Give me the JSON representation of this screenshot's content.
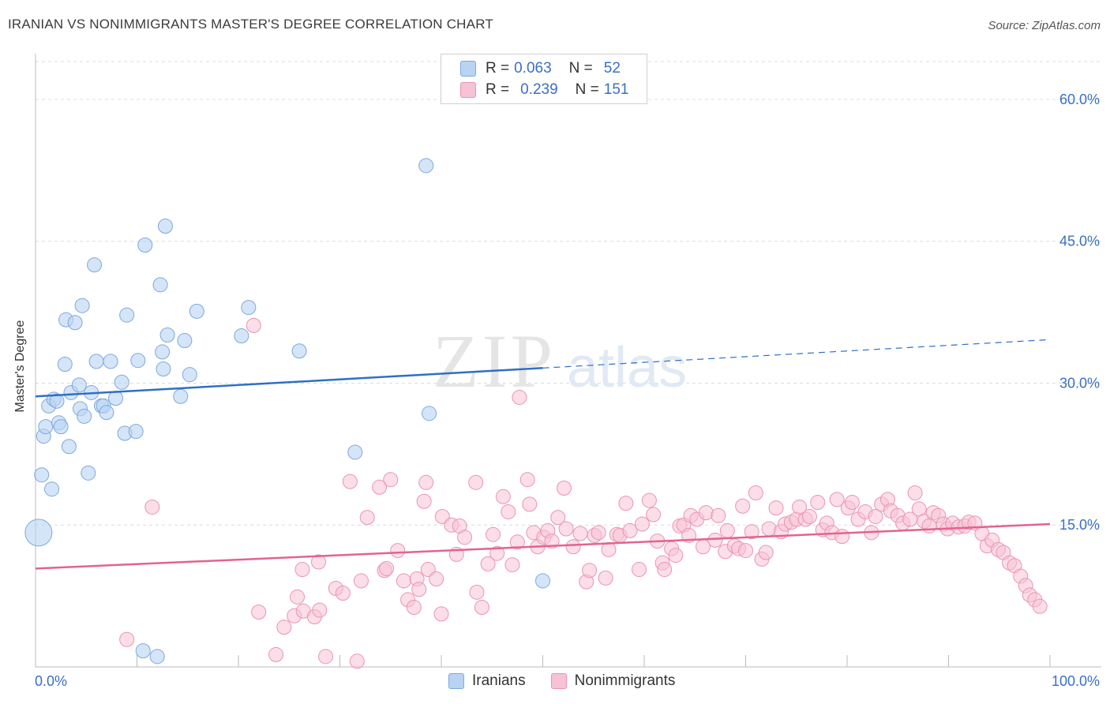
{
  "header": {
    "title": "IRANIAN VS NONIMMIGRANTS MASTER'S DEGREE CORRELATION CHART",
    "source": "Source: ZipAtlas.com"
  },
  "watermark": {
    "zip": "ZIP",
    "atlas": "atlas"
  },
  "legend": {
    "rows": [
      {
        "r_label": "R =",
        "r_value": "0.063",
        "n_label": "N =",
        "n_value": "52"
      },
      {
        "r_label": "R =",
        "r_value": "0.239",
        "n_label": "N =",
        "n_value": "151"
      }
    ],
    "bottom": [
      "Iranians",
      "Nonimmigrants"
    ]
  },
  "chart_data": {
    "type": "scatter",
    "title": "IRANIAN VS NONIMMIGRANTS MASTER'S DEGREE CORRELATION CHART",
    "ylabel": "Master's Degree",
    "xlim": [
      0,
      100
    ],
    "ylim": [
      0,
      64
    ],
    "x_tick_labels": [
      "0.0%",
      "100.0%"
    ],
    "y_ticks": [
      15,
      30,
      45,
      60
    ],
    "y_tick_labels": [
      "15.0%",
      "30.0%",
      "45.0%",
      "60.0%"
    ],
    "grid": true,
    "legend_position": "top-center",
    "colors": {
      "iranians_fill": "#b9d3f3",
      "iranians_stroke": "#7ea8dc",
      "iranians_line": "#2f6fc6",
      "nonimmigrants_fill": "#f7c2d3",
      "nonimmigrants_stroke": "#ea94b2",
      "nonimmigrants_line": "#e3638f",
      "axis_text": "#3a6fc4"
    },
    "series": [
      {
        "name": "Iranians",
        "R": 0.063,
        "N": 52,
        "trend": {
          "x0": 0,
          "y0": 28.6,
          "x1": 100,
          "y1": 34.6,
          "solid_until_x": 50
        },
        "points": [
          [
            0.3,
            14.2
          ],
          [
            0.6,
            20.3
          ],
          [
            0.8,
            24.4
          ],
          [
            1.0,
            25.4
          ],
          [
            1.3,
            27.6
          ],
          [
            1.6,
            18.8
          ],
          [
            1.8,
            28.3
          ],
          [
            2.1,
            28.1
          ],
          [
            2.3,
            25.8
          ],
          [
            2.5,
            25.4
          ],
          [
            2.9,
            32.0
          ],
          [
            3.0,
            36.7
          ],
          [
            3.3,
            23.3
          ],
          [
            3.5,
            29.0
          ],
          [
            3.9,
            36.4
          ],
          [
            4.3,
            29.8
          ],
          [
            4.4,
            27.3
          ],
          [
            4.6,
            38.2
          ],
          [
            4.8,
            26.5
          ],
          [
            5.2,
            20.5
          ],
          [
            5.5,
            29.0
          ],
          [
            5.8,
            42.5
          ],
          [
            6.0,
            32.3
          ],
          [
            6.5,
            27.6
          ],
          [
            6.7,
            27.6
          ],
          [
            7.0,
            26.9
          ],
          [
            7.4,
            32.3
          ],
          [
            7.9,
            28.4
          ],
          [
            8.5,
            30.1
          ],
          [
            8.8,
            24.7
          ],
          [
            9.0,
            37.2
          ],
          [
            9.9,
            24.9
          ],
          [
            10.1,
            32.4
          ],
          [
            10.6,
            1.7
          ],
          [
            10.8,
            44.6
          ],
          [
            12.0,
            1.1
          ],
          [
            12.3,
            40.4
          ],
          [
            12.5,
            33.3
          ],
          [
            12.6,
            31.5
          ],
          [
            12.8,
            46.6
          ],
          [
            13.0,
            35.1
          ],
          [
            14.3,
            28.6
          ],
          [
            14.7,
            34.5
          ],
          [
            15.2,
            30.9
          ],
          [
            15.9,
            37.6
          ],
          [
            20.3,
            35.0
          ],
          [
            21.0,
            38.0
          ],
          [
            26.0,
            33.4
          ],
          [
            31.5,
            22.7
          ],
          [
            38.5,
            53.0
          ],
          [
            38.8,
            26.8
          ],
          [
            50.0,
            9.1
          ]
        ]
      },
      {
        "name": "Nonimmigrants",
        "R": 0.239,
        "N": 151,
        "trend": {
          "x0": 0,
          "y0": 10.4,
          "x1": 100,
          "y1": 15.1
        },
        "points": [
          [
            9.0,
            2.9
          ],
          [
            11.5,
            16.9
          ],
          [
            21.5,
            36.1
          ],
          [
            22.0,
            5.8
          ],
          [
            23.7,
            1.3
          ],
          [
            24.5,
            4.2
          ],
          [
            25.5,
            5.4
          ],
          [
            26.4,
            5.9
          ],
          [
            25.8,
            7.4
          ],
          [
            26.3,
            10.3
          ],
          [
            27.5,
            5.3
          ],
          [
            27.9,
            11.1
          ],
          [
            28.0,
            6.0
          ],
          [
            28.6,
            1.1
          ],
          [
            29.6,
            8.3
          ],
          [
            30.3,
            7.8
          ],
          [
            31.0,
            19.6
          ],
          [
            31.7,
            0.6
          ],
          [
            32.1,
            9.1
          ],
          [
            32.7,
            15.8
          ],
          [
            33.9,
            19.0
          ],
          [
            34.4,
            10.2
          ],
          [
            34.6,
            10.4
          ],
          [
            35.0,
            19.8
          ],
          [
            35.7,
            12.3
          ],
          [
            36.3,
            9.1
          ],
          [
            36.7,
            7.1
          ],
          [
            37.3,
            6.3
          ],
          [
            37.6,
            9.3
          ],
          [
            37.8,
            8.2
          ],
          [
            38.3,
            17.5
          ],
          [
            38.5,
            19.5
          ],
          [
            38.7,
            10.3
          ],
          [
            39.5,
            9.3
          ],
          [
            40.0,
            5.6
          ],
          [
            40.1,
            15.9
          ],
          [
            41.0,
            15.0
          ],
          [
            41.5,
            11.9
          ],
          [
            41.8,
            14.9
          ],
          [
            42.3,
            13.7
          ],
          [
            43.4,
            19.5
          ],
          [
            43.5,
            7.9
          ],
          [
            44.0,
            6.3
          ],
          [
            44.6,
            10.9
          ],
          [
            45.1,
            14.0
          ],
          [
            45.5,
            12.0
          ],
          [
            46.1,
            18.0
          ],
          [
            46.6,
            16.4
          ],
          [
            47.0,
            10.8
          ],
          [
            47.5,
            13.2
          ],
          [
            47.7,
            28.5
          ],
          [
            48.5,
            19.8
          ],
          [
            48.7,
            17.2
          ],
          [
            49.1,
            14.2
          ],
          [
            49.5,
            12.7
          ],
          [
            50.1,
            13.7
          ],
          [
            50.5,
            14.4
          ],
          [
            50.9,
            13.3
          ],
          [
            51.5,
            15.8
          ],
          [
            52.1,
            18.9
          ],
          [
            52.3,
            14.6
          ],
          [
            53.0,
            12.7
          ],
          [
            53.7,
            14.1
          ],
          [
            54.3,
            9.0
          ],
          [
            54.6,
            10.2
          ],
          [
            55.1,
            13.9
          ],
          [
            55.5,
            14.2
          ],
          [
            56.2,
            9.4
          ],
          [
            56.5,
            12.4
          ],
          [
            57.3,
            14.0
          ],
          [
            57.6,
            13.9
          ],
          [
            58.2,
            17.3
          ],
          [
            58.6,
            14.4
          ],
          [
            59.5,
            10.3
          ],
          [
            59.8,
            15.1
          ],
          [
            60.5,
            17.6
          ],
          [
            60.9,
            16.1
          ],
          [
            61.3,
            13.3
          ],
          [
            61.8,
            11.0
          ],
          [
            62.0,
            10.3
          ],
          [
            62.7,
            12.5
          ],
          [
            63.1,
            11.8
          ],
          [
            63.5,
            14.9
          ],
          [
            63.9,
            15.0
          ],
          [
            64.4,
            13.9
          ],
          [
            64.6,
            16.0
          ],
          [
            65.2,
            15.6
          ],
          [
            65.8,
            12.7
          ],
          [
            66.1,
            16.3
          ],
          [
            67.0,
            13.4
          ],
          [
            67.3,
            16.0
          ],
          [
            68.0,
            12.2
          ],
          [
            68.2,
            14.4
          ],
          [
            68.9,
            12.8
          ],
          [
            69.3,
            12.5
          ],
          [
            69.7,
            17.0
          ],
          [
            70.0,
            12.3
          ],
          [
            70.6,
            14.3
          ],
          [
            71.0,
            18.4
          ],
          [
            71.6,
            11.4
          ],
          [
            72.0,
            12.1
          ],
          [
            72.3,
            14.6
          ],
          [
            73.0,
            16.8
          ],
          [
            73.5,
            14.3
          ],
          [
            73.9,
            15.1
          ],
          [
            74.5,
            15.3
          ],
          [
            75.0,
            15.6
          ],
          [
            75.3,
            16.9
          ],
          [
            75.9,
            15.6
          ],
          [
            76.3,
            15.9
          ],
          [
            77.1,
            17.4
          ],
          [
            77.6,
            14.5
          ],
          [
            78.0,
            15.2
          ],
          [
            78.5,
            14.2
          ],
          [
            79.0,
            17.7
          ],
          [
            79.5,
            13.8
          ],
          [
            80.1,
            16.8
          ],
          [
            80.5,
            17.4
          ],
          [
            81.1,
            15.6
          ],
          [
            81.8,
            16.4
          ],
          [
            82.4,
            14.2
          ],
          [
            82.8,
            15.9
          ],
          [
            83.4,
            17.2
          ],
          [
            84.0,
            17.7
          ],
          [
            84.3,
            16.5
          ],
          [
            85.0,
            16.0
          ],
          [
            85.5,
            15.2
          ],
          [
            86.2,
            15.6
          ],
          [
            86.7,
            18.4
          ],
          [
            87.1,
            16.7
          ],
          [
            87.6,
            15.4
          ],
          [
            88.1,
            14.9
          ],
          [
            88.5,
            16.3
          ],
          [
            89.0,
            16.0
          ],
          [
            89.5,
            15.1
          ],
          [
            89.9,
            14.6
          ],
          [
            90.4,
            15.2
          ],
          [
            91.0,
            14.8
          ],
          [
            91.6,
            14.9
          ],
          [
            92.0,
            15.3
          ],
          [
            92.6,
            15.2
          ],
          [
            93.3,
            14.1
          ],
          [
            93.8,
            12.8
          ],
          [
            94.3,
            13.4
          ],
          [
            94.9,
            12.4
          ],
          [
            95.4,
            12.1
          ],
          [
            96.0,
            11.0
          ],
          [
            96.5,
            10.7
          ],
          [
            97.1,
            9.6
          ],
          [
            97.6,
            8.6
          ],
          [
            98.0,
            7.6
          ],
          [
            98.5,
            7.1
          ],
          [
            99.0,
            6.4
          ]
        ]
      }
    ]
  }
}
